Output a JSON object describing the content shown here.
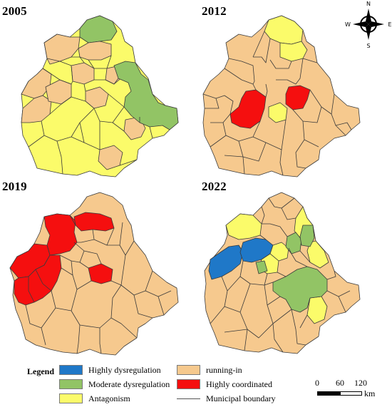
{
  "panels": [
    {
      "year": "2005",
      "key": "p2005"
    },
    {
      "year": "2012",
      "key": "p2012"
    },
    {
      "year": "2019",
      "key": "p2019"
    },
    {
      "year": "2022",
      "key": "p2022"
    }
  ],
  "colors": {
    "highly_dysregulation": "#1f78c8",
    "moderate_dysregulation": "#92c465",
    "antagonism": "#fbfb6a",
    "running_in": "#f6c98e",
    "highly_coordinated": "#f50f0f",
    "boundary": "#3a3a3a"
  },
  "compass": {
    "n": "N",
    "s": "S",
    "e": "E",
    "w": "W"
  },
  "legend": {
    "title": "Legend",
    "items": [
      {
        "key": "highly_dysregulation",
        "label": "Highly dysregulation",
        "color": "#1f78c8"
      },
      {
        "key": "moderate_dysregulation",
        "label": "Moderate dysregulation",
        "color": "#92c465"
      },
      {
        "key": "antagonism",
        "label": "Antagonism",
        "color": "#fbfb6a"
      },
      {
        "key": "running_in",
        "label": "running-in",
        "color": "#f6c98e"
      },
      {
        "key": "highly_coordinated",
        "label": "Highly coordinated",
        "color": "#f50f0f"
      },
      {
        "key": "boundary",
        "label": "Municipal boundary",
        "color": "#3a3a3a"
      }
    ]
  },
  "scale": {
    "ticks": [
      "0",
      "60",
      "120"
    ],
    "unit": "km"
  }
}
